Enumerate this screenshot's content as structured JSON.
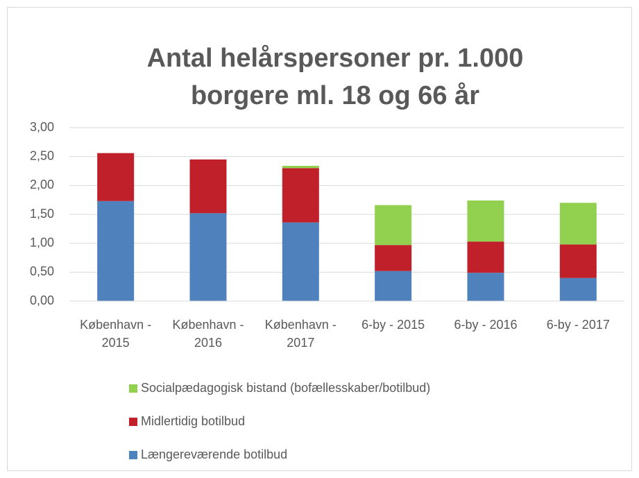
{
  "chart_data": {
    "type": "stacked_bar",
    "title": [
      "Antal helårspersoner pr. 1.000",
      "borgere ml. 18 og 66 år"
    ],
    "categories": [
      "København - 2015",
      "København - 2016",
      "København - 2017",
      "6-by - 2015",
      "6-by - 2016",
      "6-by - 2017"
    ],
    "series": [
      {
        "name": "Længereværende botilbud",
        "color": "#4f81bd",
        "values": [
          1.73,
          1.52,
          1.36,
          0.52,
          0.49,
          0.4
        ]
      },
      {
        "name": "Midlertidig botilbud",
        "color": "#c0202a",
        "values": [
          0.83,
          0.93,
          0.94,
          0.45,
          0.54,
          0.58
        ]
      },
      {
        "name": "Socialpædagogisk bistand (bofællesskaber/botilbud)",
        "color": "#92d050",
        "values": [
          0,
          0,
          0.04,
          0.69,
          0.71,
          0.72
        ]
      }
    ],
    "ylim": [
      0,
      3
    ],
    "yticks": [
      {
        "value": 0,
        "label": "0,00"
      },
      {
        "value": 0.5,
        "label": "0,50"
      },
      {
        "value": 1,
        "label": "1,00"
      },
      {
        "value": 1.5,
        "label": "1,50"
      },
      {
        "value": 2,
        "label": "2,00"
      },
      {
        "value": 2.5,
        "label": "2,50"
      },
      {
        "value": 3,
        "label": "3,00"
      }
    ],
    "grid": true
  }
}
